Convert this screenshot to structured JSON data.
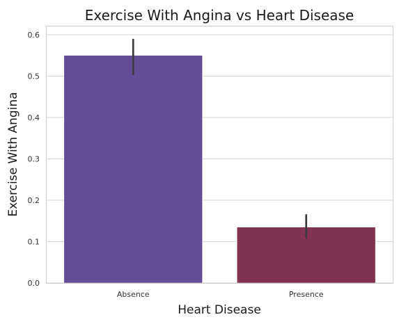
{
  "chart_data": {
    "type": "bar",
    "title": "Exercise With Angina vs Heart Disease",
    "xlabel": "Heart Disease",
    "ylabel": "Exercise With Angina",
    "categories": [
      "Absence",
      "Presence"
    ],
    "values": [
      0.55,
      0.135
    ],
    "error_low": [
      0.503,
      0.108
    ],
    "error_high": [
      0.59,
      0.166
    ],
    "colors": [
      "#634e96",
      "#813351"
    ],
    "error_color": "#3b3b3b",
    "ylim": [
      0,
      0.62
    ],
    "yticks": [
      0.0,
      0.1,
      0.2,
      0.3,
      0.4,
      0.5,
      0.6
    ],
    "ytick_labels": [
      "0.0",
      "0.1",
      "0.2",
      "0.3",
      "0.4",
      "0.5",
      "0.6"
    ],
    "grid": true
  }
}
